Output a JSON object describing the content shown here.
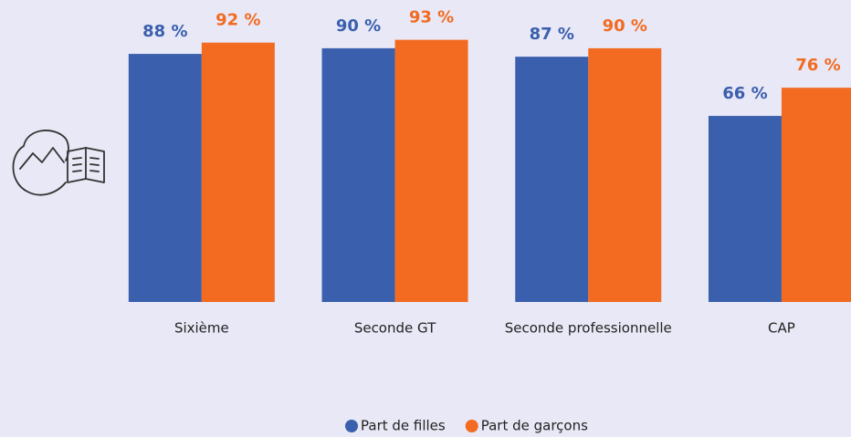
{
  "chart_data": {
    "type": "bar",
    "categories": [
      "Sixième",
      "Seconde GT",
      "Seconde professionnelle",
      "CAP"
    ],
    "series": [
      {
        "name": "Part de filles",
        "color": "#3a5fad",
        "values": [
          88,
          90,
          87,
          66
        ],
        "value_labels": [
          "88 %",
          "90 %",
          "87 %",
          "66 %"
        ]
      },
      {
        "name": "Part de garçons",
        "color": "#f26b21",
        "values": [
          92,
          93,
          90,
          76
        ],
        "value_labels": [
          "92 %",
          "93 %",
          "90 %",
          "76 %"
        ]
      }
    ],
    "ylim": [
      0,
      100
    ]
  }
}
